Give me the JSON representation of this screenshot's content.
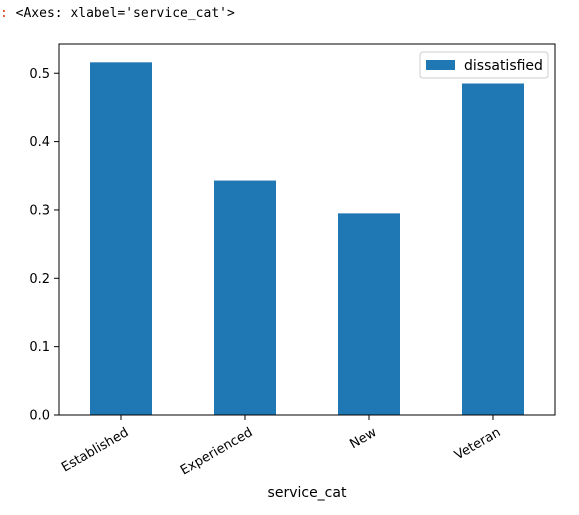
{
  "output": {
    "prompt": ":",
    "repr": "<Axes: xlabel='service_cat'>"
  },
  "colors": {
    "bar": "#1f77b4",
    "axis": "#000000"
  },
  "chart_data": {
    "type": "bar",
    "categories": [
      "Established",
      "Experienced",
      "New",
      "Veteran"
    ],
    "series": [
      {
        "name": "dissatisfied",
        "values": [
          0.516,
          0.343,
          0.295,
          0.485
        ]
      }
    ],
    "title": "",
    "xlabel": "service_cat",
    "ylabel": "",
    "ylim": [
      0,
      0.5428
    ],
    "yticks": [
      0.0,
      0.1,
      0.2,
      0.3,
      0.4,
      0.5
    ],
    "ytick_labels": [
      "0.0",
      "0.1",
      "0.2",
      "0.3",
      "0.4",
      "0.5"
    ],
    "xtick_rotation": 30,
    "grid": false,
    "legend_position": "top-right"
  }
}
